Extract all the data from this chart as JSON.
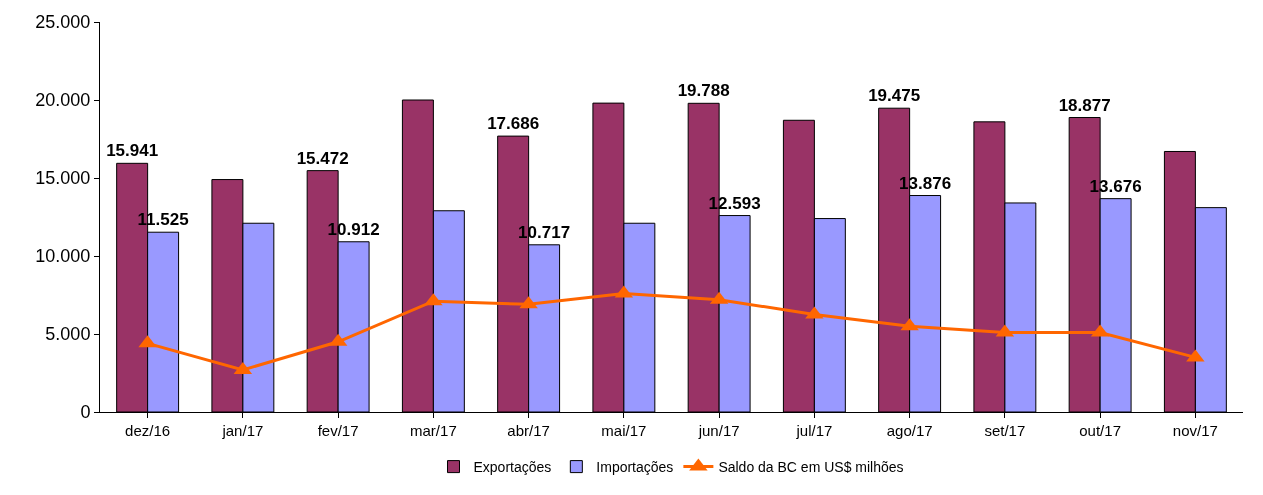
{
  "chart_data": {
    "type": "bar",
    "categories": [
      "dez/16",
      "jan/17",
      "fev/17",
      "mar/17",
      "abr/17",
      "mai/17",
      "jun/17",
      "jul/17",
      "ago/17",
      "set/17",
      "out/17",
      "nov/17"
    ],
    "series": [
      {
        "name": "Exportações",
        "color": "#993366",
        "values": [
          15941,
          14900,
          15472,
          20000,
          17686,
          19800,
          19788,
          18700,
          19475,
          18600,
          18877,
          16700
        ],
        "value_labels": [
          "15.941",
          null,
          "15.472",
          null,
          "17.686",
          null,
          "19.788",
          null,
          "19.475",
          null,
          "18.877",
          null
        ]
      },
      {
        "name": "Importações",
        "color": "#9999ff",
        "values": [
          11525,
          12100,
          10912,
          12900,
          10717,
          12100,
          12593,
          12400,
          13876,
          13400,
          13676,
          13100
        ],
        "value_labels": [
          "11.525",
          null,
          "10.912",
          null,
          "10.717",
          null,
          "12.593",
          null,
          "13.876",
          null,
          "13.676",
          null
        ]
      },
      {
        "name": "Saldo da BC em US$ milhões",
        "color": "#ff6600",
        "type": "line",
        "marker": "triangle",
        "values": [
          4400,
          2700,
          4500,
          7100,
          6900,
          7600,
          7200,
          6250,
          5500,
          5100,
          5100,
          3500
        ]
      }
    ],
    "ylim": [
      0,
      25000
    ],
    "yticks": [
      {
        "value": 0,
        "label": "0"
      },
      {
        "value": 5000,
        "label": "5.000"
      },
      {
        "value": 10000,
        "label": "10.000"
      },
      {
        "value": 15000,
        "label": "15.000"
      },
      {
        "value": 20000,
        "label": "20.000"
      },
      {
        "value": 25000,
        "label": "25.000"
      }
    ],
    "legend": "bottom"
  }
}
